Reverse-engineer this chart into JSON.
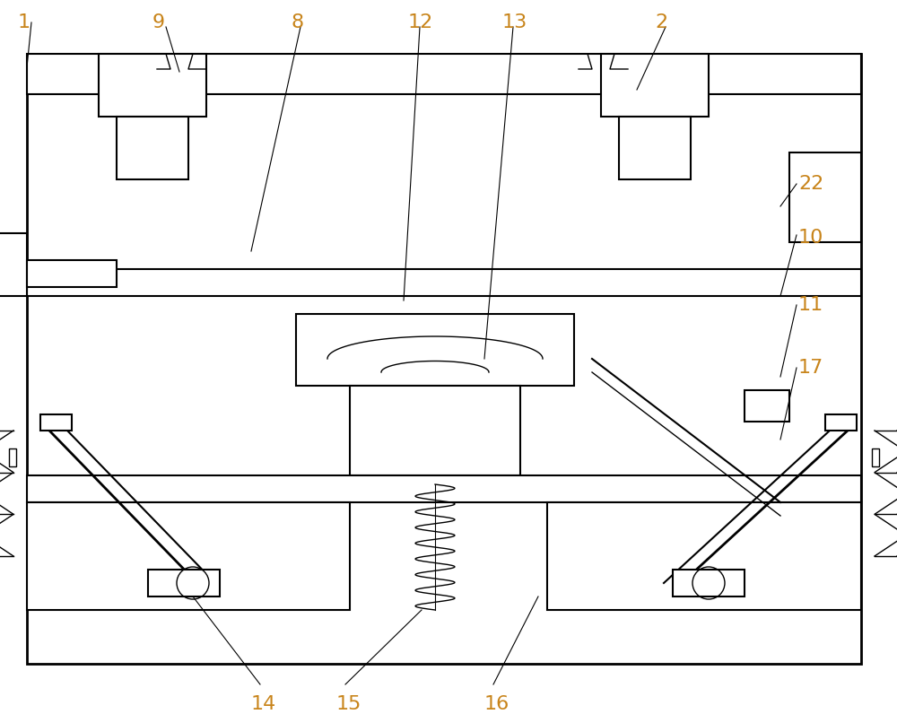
{
  "bg_color": "#ffffff",
  "line_color": "#000000",
  "label_color": "#c8841a",
  "fig_width": 10.0,
  "fig_height": 7.96,
  "dpi": 100
}
